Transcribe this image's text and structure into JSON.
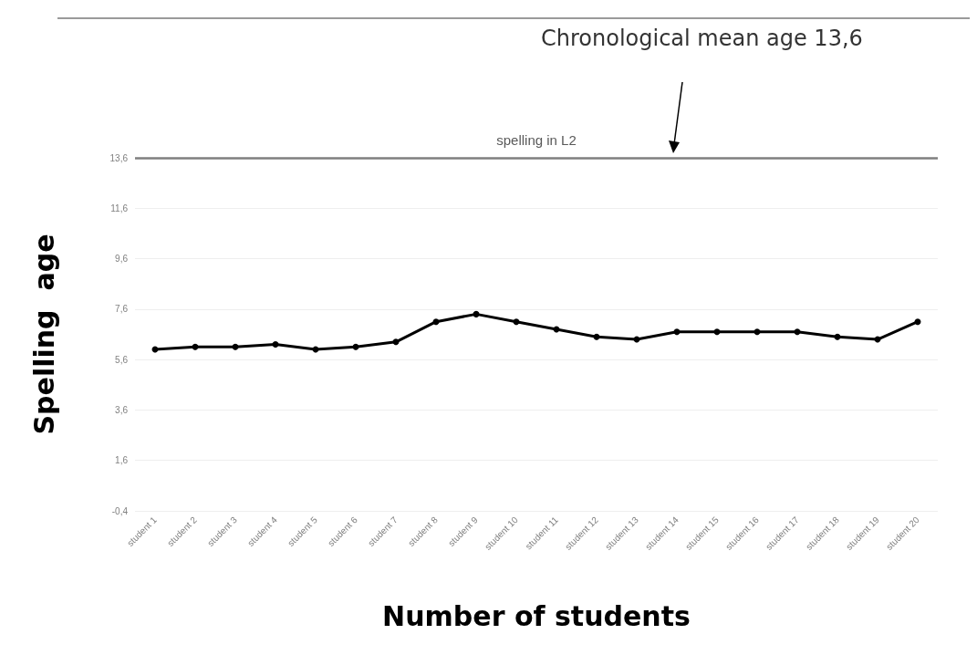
{
  "chart_data": {
    "type": "line",
    "xlabel": "Number of students",
    "ylabel": "Spelling  age",
    "categories": [
      "student 1",
      "student 2",
      "student 3",
      "student 4",
      "student 5",
      "student 6",
      "student 7",
      "student 8",
      "student 9",
      "student 10",
      "student 11",
      "student 12",
      "student 13",
      "student 14",
      "student 15",
      "student 16",
      "student 17",
      "student 18",
      "student 19",
      "student 20"
    ],
    "series": [
      {
        "color": "#000000",
        "values": [
          6.0,
          6.1,
          6.1,
          6.2,
          6.0,
          6.1,
          6.3,
          7.1,
          7.4,
          7.1,
          6.8,
          6.5,
          6.4,
          6.7,
          6.7,
          6.7,
          6.7,
          6.5,
          6.4,
          7.1
        ]
      }
    ],
    "ylim": [
      -0.4,
      13.6
    ],
    "yticks": [
      {
        "value": -0.4,
        "label": "-0,4"
      },
      {
        "value": 1.6,
        "label": "1,6"
      },
      {
        "value": 3.6,
        "label": "3,6"
      },
      {
        "value": 5.6,
        "label": "5,6"
      },
      {
        "value": 7.6,
        "label": "7,6"
      },
      {
        "value": 9.6,
        "label": "9,6"
      },
      {
        "value": 11.6,
        "label": "11,6"
      },
      {
        "value": 13.6,
        "label": "13,6"
      }
    ],
    "ref_lines": [
      {
        "axis": "y",
        "value": 13.6,
        "label": "spelling in L2",
        "color": "#7f7f7f"
      }
    ],
    "annotations": [
      "Chronological mean age 13,6"
    ],
    "grid": "y",
    "marker": "circle",
    "line_style": "solid"
  }
}
